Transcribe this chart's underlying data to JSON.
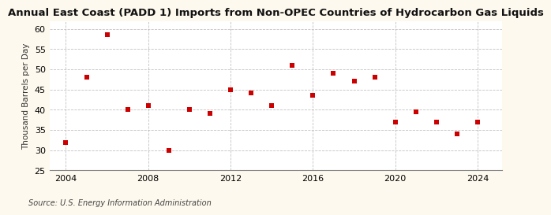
{
  "title": "Annual East Coast (PADD 1) Imports from Non-OPEC Countries of Hydrocarbon Gas Liquids",
  "ylabel": "Thousand Barrels per Day",
  "source": "Source: U.S. Energy Information Administration",
  "background_color": "#fef9ee",
  "plot_background_color": "#ffffff",
  "marker_color": "#cc0000",
  "years": [
    2004,
    2005,
    2006,
    2007,
    2008,
    2009,
    2010,
    2011,
    2012,
    2013,
    2014,
    2015,
    2016,
    2017,
    2018,
    2019,
    2020,
    2021,
    2022,
    2023,
    2024
  ],
  "values": [
    31.8,
    48.0,
    58.5,
    40.0,
    41.0,
    30.0,
    40.0,
    39.0,
    45.0,
    44.2,
    41.0,
    51.0,
    43.5,
    49.0,
    47.0,
    48.0,
    37.0,
    39.5,
    37.0,
    34.0,
    37.0
  ],
  "ylim": [
    25,
    62
  ],
  "yticks": [
    25,
    30,
    35,
    40,
    45,
    50,
    55,
    60
  ],
  "xlim": [
    2003.2,
    2025.2
  ],
  "xticks": [
    2004,
    2008,
    2012,
    2016,
    2020,
    2024
  ],
  "grid_color": "#bbbbbb",
  "title_fontsize": 9.5,
  "label_fontsize": 7.5,
  "tick_fontsize": 8,
  "source_fontsize": 7,
  "marker_size": 4
}
